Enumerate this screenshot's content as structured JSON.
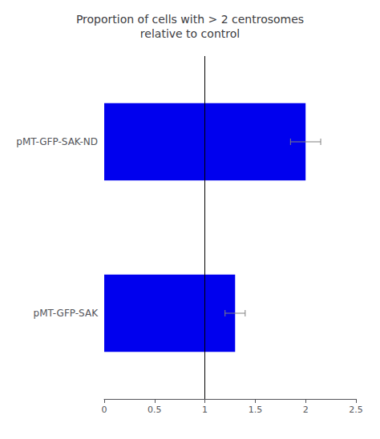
{
  "chart_data": {
    "type": "bar",
    "orientation": "horizontal",
    "title": "Proportion of cells with > 2 centrosomes\nrelative to control",
    "categories": [
      "pMT-GFP-SAK-ND",
      "pMT-GFP-SAK"
    ],
    "values": [
      2.0,
      1.3
    ],
    "errors": [
      0.15,
      0.1
    ],
    "color": "#0000EE",
    "xlim": [
      0,
      2.5
    ],
    "xticks": [
      0,
      0.5,
      1,
      1.5,
      2,
      2.5
    ],
    "vline": 1,
    "grid": false
  }
}
